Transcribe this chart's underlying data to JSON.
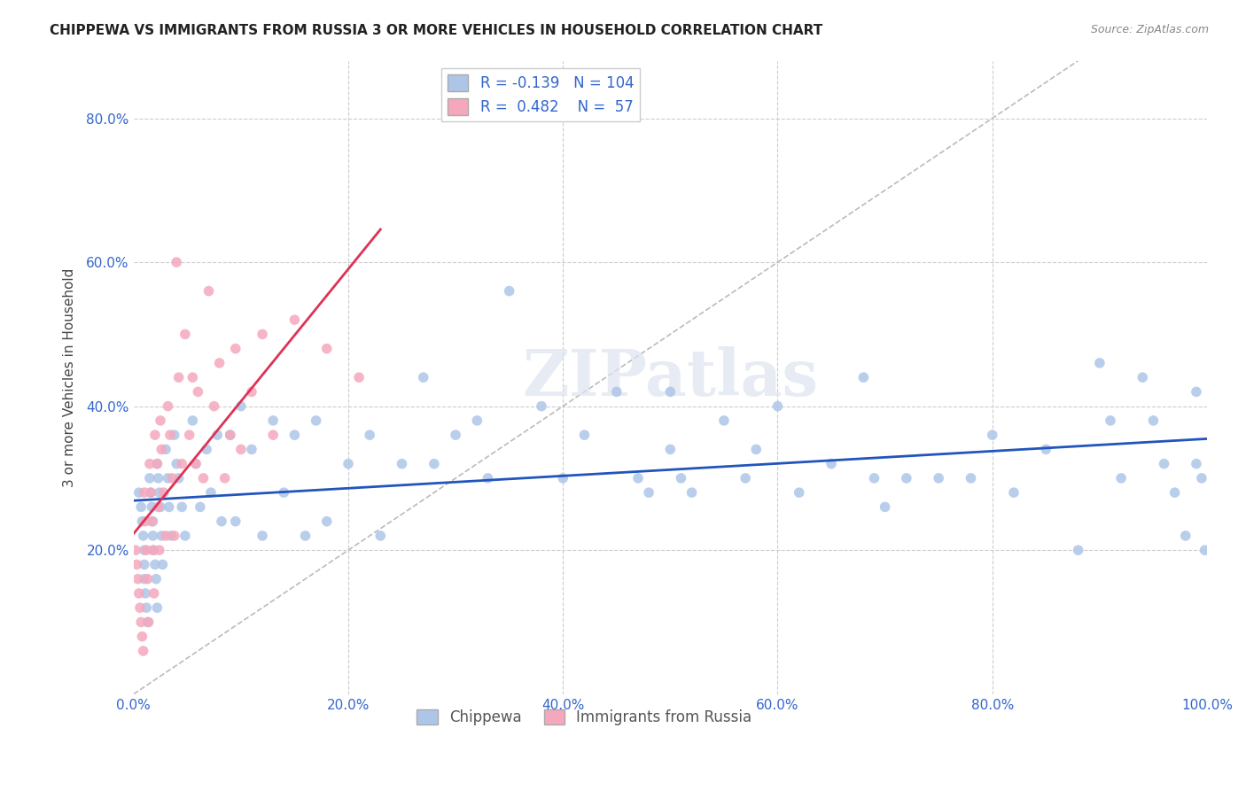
{
  "title": "CHIPPEWA VS IMMIGRANTS FROM RUSSIA 3 OR MORE VEHICLES IN HOUSEHOLD CORRELATION CHART",
  "source": "Source: ZipAtlas.com",
  "ylabel": "3 or more Vehicles in Household",
  "xlim": [
    0,
    1.0
  ],
  "ylim": [
    0,
    0.88
  ],
  "xticks": [
    0.0,
    0.2,
    0.4,
    0.6,
    0.8,
    1.0
  ],
  "xticklabels": [
    "0.0%",
    "20.0%",
    "40.0%",
    "60.0%",
    "80.0%",
    "100.0%"
  ],
  "yticks": [
    0.2,
    0.4,
    0.6,
    0.8
  ],
  "yticklabels": [
    "20.0%",
    "40.0%",
    "60.0%",
    "80.0%"
  ],
  "legend_r_blue": "-0.139",
  "legend_n_blue": "104",
  "legend_r_pink": "0.482",
  "legend_n_pink": "57",
  "blue_color": "#adc6e8",
  "pink_color": "#f5a8bc",
  "trendline_blue_color": "#2255bb",
  "trendline_pink_color": "#dd3355",
  "diagonal_color": "#bbbbbb",
  "watermark": "ZIPatlas",
  "blue_x": [
    0.005,
    0.007,
    0.008,
    0.009,
    0.01,
    0.01,
    0.01,
    0.011,
    0.012,
    0.013,
    0.015,
    0.016,
    0.017,
    0.018,
    0.018,
    0.019,
    0.02,
    0.021,
    0.022,
    0.022,
    0.023,
    0.024,
    0.025,
    0.026,
    0.027,
    0.03,
    0.032,
    0.033,
    0.035,
    0.038,
    0.04,
    0.042,
    0.045,
    0.048,
    0.055,
    0.058,
    0.062,
    0.068,
    0.072,
    0.078,
    0.082,
    0.09,
    0.095,
    0.1,
    0.11,
    0.12,
    0.13,
    0.14,
    0.15,
    0.16,
    0.17,
    0.18,
    0.2,
    0.22,
    0.23,
    0.25,
    0.27,
    0.28,
    0.3,
    0.32,
    0.33,
    0.35,
    0.38,
    0.4,
    0.42,
    0.45,
    0.47,
    0.48,
    0.5,
    0.5,
    0.51,
    0.52,
    0.55,
    0.57,
    0.58,
    0.6,
    0.62,
    0.65,
    0.68,
    0.69,
    0.7,
    0.72,
    0.75,
    0.78,
    0.8,
    0.82,
    0.85,
    0.88,
    0.9,
    0.91,
    0.92,
    0.94,
    0.95,
    0.96,
    0.97,
    0.98,
    0.99,
    0.99,
    0.995,
    0.998
  ],
  "blue_y": [
    0.28,
    0.26,
    0.24,
    0.22,
    0.2,
    0.18,
    0.16,
    0.14,
    0.12,
    0.1,
    0.3,
    0.28,
    0.26,
    0.24,
    0.22,
    0.2,
    0.18,
    0.16,
    0.12,
    0.32,
    0.3,
    0.28,
    0.26,
    0.22,
    0.18,
    0.34,
    0.3,
    0.26,
    0.22,
    0.36,
    0.32,
    0.3,
    0.26,
    0.22,
    0.38,
    0.32,
    0.26,
    0.34,
    0.28,
    0.36,
    0.24,
    0.36,
    0.24,
    0.4,
    0.34,
    0.22,
    0.38,
    0.28,
    0.36,
    0.22,
    0.38,
    0.24,
    0.32,
    0.36,
    0.22,
    0.32,
    0.44,
    0.32,
    0.36,
    0.38,
    0.3,
    0.56,
    0.4,
    0.3,
    0.36,
    0.42,
    0.3,
    0.28,
    0.34,
    0.42,
    0.3,
    0.28,
    0.38,
    0.3,
    0.34,
    0.4,
    0.28,
    0.32,
    0.44,
    0.3,
    0.26,
    0.3,
    0.3,
    0.3,
    0.36,
    0.28,
    0.34,
    0.2,
    0.46,
    0.38,
    0.3,
    0.44,
    0.38,
    0.32,
    0.28,
    0.22,
    0.42,
    0.32,
    0.3,
    0.2
  ],
  "pink_x": [
    0.002,
    0.003,
    0.004,
    0.005,
    0.006,
    0.007,
    0.008,
    0.009,
    0.01,
    0.011,
    0.012,
    0.013,
    0.014,
    0.015,
    0.016,
    0.017,
    0.018,
    0.019,
    0.02,
    0.022,
    0.023,
    0.024,
    0.025,
    0.026,
    0.028,
    0.03,
    0.032,
    0.034,
    0.036,
    0.038,
    0.04,
    0.042,
    0.045,
    0.048,
    0.052,
    0.055,
    0.058,
    0.06,
    0.065,
    0.07,
    0.075,
    0.08,
    0.085,
    0.09,
    0.095,
    0.1,
    0.11,
    0.12,
    0.13,
    0.15,
    0.18,
    0.21
  ],
  "pink_y": [
    0.2,
    0.18,
    0.16,
    0.14,
    0.12,
    0.1,
    0.08,
    0.06,
    0.28,
    0.24,
    0.2,
    0.16,
    0.1,
    0.32,
    0.28,
    0.24,
    0.2,
    0.14,
    0.36,
    0.32,
    0.26,
    0.2,
    0.38,
    0.34,
    0.28,
    0.22,
    0.4,
    0.36,
    0.3,
    0.22,
    0.6,
    0.44,
    0.32,
    0.5,
    0.36,
    0.44,
    0.32,
    0.42,
    0.3,
    0.56,
    0.4,
    0.46,
    0.3,
    0.36,
    0.48,
    0.34,
    0.42,
    0.5,
    0.36,
    0.52,
    0.48,
    0.44
  ]
}
